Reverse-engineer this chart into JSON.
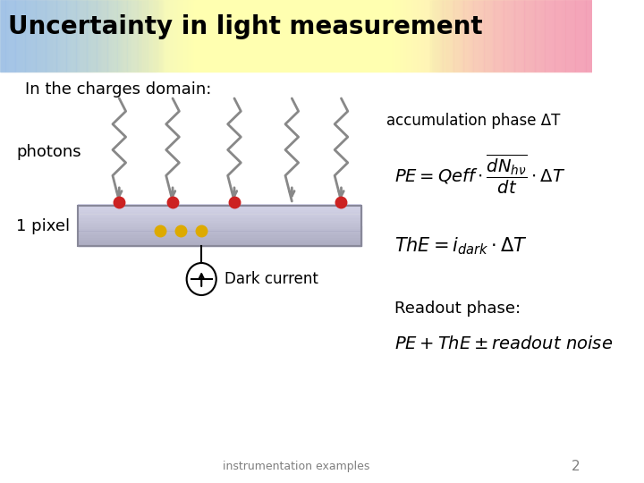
{
  "title": "Uncertainty in light measurement",
  "subtitle": "In the charges domain:",
  "photons_label": "photons",
  "pixel_label": "1 pixel",
  "dark_current_label": "Dark current",
  "accum_label": "accumulation phase ΔT",
  "eq1": "$PE = Qeff \\cdot \\dfrac{\\overline{dN_{h\\nu}}}{dt} \\cdot \\Delta T$",
  "eq2": "$ThE = i_{dark} \\cdot \\Delta T$",
  "readout_label": "Readout phase:",
  "eq3": "$PE + ThE \\pm readout\\ noise$",
  "footer": "instrumentation examples",
  "page": "2",
  "bg_top_left": "#c8d8e8",
  "bg_top_right": "#f8c8d0",
  "bg_top_mid": "#f0f0b0",
  "pixel_color_top": "#d8d8e8",
  "pixel_color_bot": "#b0b0c8",
  "red_dot_color": "#cc2222",
  "yellow_dot_color": "#ddaa00",
  "arrow_color": "#888888",
  "title_fontsize": 20,
  "body_fontsize": 13,
  "label_fontsize": 12,
  "eq_fontsize": 14
}
